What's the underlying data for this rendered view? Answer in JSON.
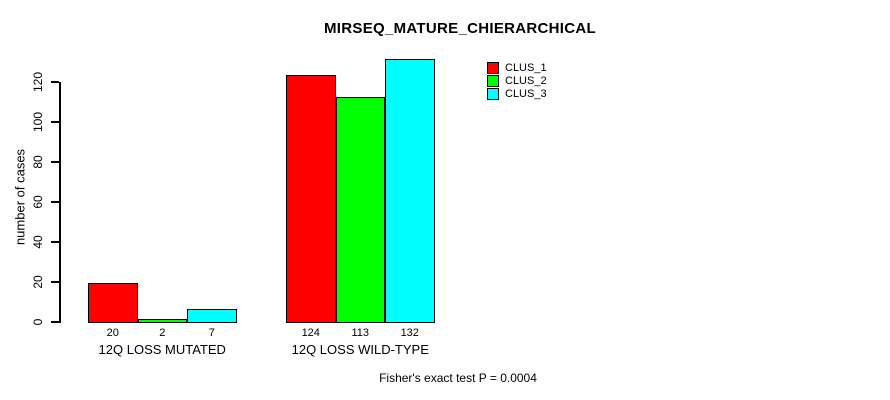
{
  "chart_data": {
    "type": "bar",
    "title": "MIRSEQ_MATURE_CHIERARCHICAL",
    "ylabel": "number of cases",
    "xlabel": "",
    "categories": [
      "12Q LOSS MUTATED",
      "12Q LOSS WILD-TYPE"
    ],
    "series": [
      {
        "name": "CLUS_1",
        "color": "#ff0000",
        "values": [
          20,
          124
        ]
      },
      {
        "name": "CLUS_2",
        "color": "#00ff00",
        "values": [
          2,
          113
        ]
      },
      {
        "name": "CLUS_3",
        "color": "#00ffff",
        "values": [
          7,
          132
        ]
      }
    ],
    "value_labels": [
      [
        "20",
        "2",
        "7"
      ],
      [
        "124",
        "113",
        "132"
      ]
    ],
    "y_ticks": [
      0,
      20,
      40,
      60,
      80,
      100,
      120
    ],
    "ylim": [
      0,
      132
    ],
    "grid": false,
    "legend_position": "top-right",
    "bar_border_color": "#000000",
    "background_color": "#ffffff",
    "footnote": "Fisher's exact test P = 0.0004"
  }
}
